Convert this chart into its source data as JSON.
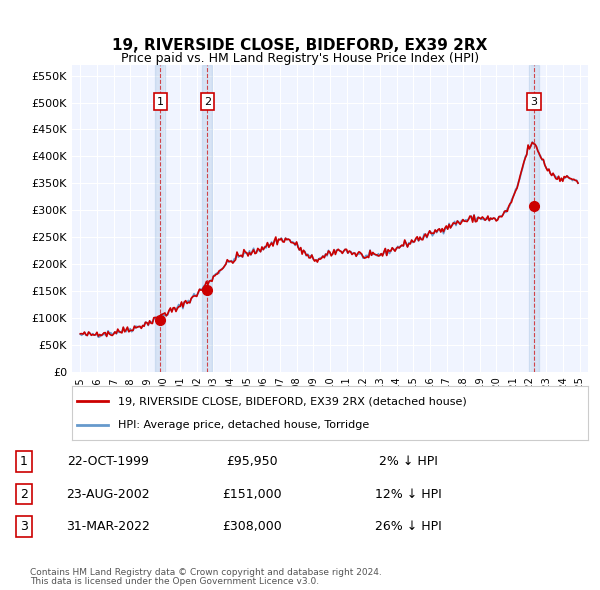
{
  "title": "19, RIVERSIDE CLOSE, BIDEFORD, EX39 2RX",
  "subtitle": "Price paid vs. HM Land Registry's House Price Index (HPI)",
  "legend_line1": "19, RIVERSIDE CLOSE, BIDEFORD, EX39 2RX (detached house)",
  "legend_line2": "HPI: Average price, detached house, Torridge",
  "hpi_color": "#6699cc",
  "price_color": "#cc0000",
  "background_color": "#ffffff",
  "plot_bg_color": "#f0f4ff",
  "grid_color": "#ffffff",
  "footnote1": "Contains HM Land Registry data © Crown copyright and database right 2024.",
  "footnote2": "This data is licensed under the Open Government Licence v3.0.",
  "sales": [
    {
      "label": "1",
      "date": "22-OCT-1999",
      "price": 95950,
      "pct": "2% ↓ HPI",
      "x": 1999.81
    },
    {
      "label": "2",
      "date": "23-AUG-2002",
      "price": 151000,
      "pct": "12% ↓ HPI",
      "x": 2002.64
    },
    {
      "label": "3",
      "date": "31-MAR-2022",
      "price": 308000,
      "pct": "26% ↓ HPI",
      "x": 2022.25
    }
  ],
  "ylim": [
    0,
    570000
  ],
  "yticks": [
    0,
    50000,
    100000,
    150000,
    200000,
    250000,
    300000,
    350000,
    400000,
    450000,
    500000,
    550000
  ],
  "ytick_labels": [
    "£0",
    "£50K",
    "£100K",
    "£150K",
    "£200K",
    "£250K",
    "£300K",
    "£350K",
    "£400K",
    "£450K",
    "£500K",
    "£550K"
  ],
  "xlim_start": 1994.5,
  "xlim_end": 2025.5,
  "xtick_years": [
    1995,
    1996,
    1997,
    1998,
    1999,
    2000,
    2001,
    2002,
    2003,
    2004,
    2005,
    2006,
    2007,
    2008,
    2009,
    2010,
    2011,
    2012,
    2013,
    2014,
    2015,
    2016,
    2017,
    2018,
    2019,
    2020,
    2021,
    2022,
    2023,
    2024,
    2025
  ]
}
